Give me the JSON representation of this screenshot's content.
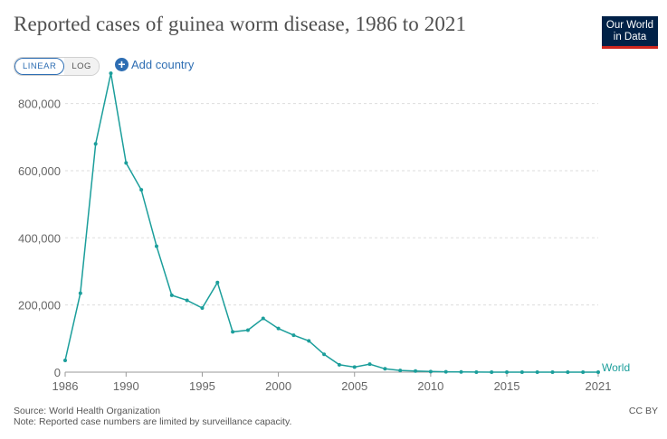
{
  "header": {
    "title": "Reported cases of guinea worm disease, 1986 to 2021",
    "logo_line1": "Our World",
    "logo_line2": "in Data"
  },
  "controls": {
    "linear_label": "LINEAR",
    "log_label": "LOG",
    "add_country_label": "Add country"
  },
  "chart_data": {
    "type": "line",
    "title": "Reported cases of guinea worm disease, 1986 to 2021",
    "xlabel": "",
    "ylabel": "",
    "xlim": [
      1986,
      2021
    ],
    "ylim": [
      0,
      850000
    ],
    "xticks": [
      1986,
      1990,
      1995,
      2000,
      2005,
      2010,
      2015,
      2021
    ],
    "yticks": [
      0,
      200000,
      400000,
      600000,
      800000
    ],
    "ytick_labels": [
      "0",
      "200,000",
      "400,000",
      "600,000",
      "800,000"
    ],
    "grid": true,
    "series": [
      {
        "name": "World",
        "color": "#1b9e9b",
        "x": [
          1986,
          1987,
          1988,
          1989,
          1990,
          1991,
          1992,
          1993,
          1994,
          1995,
          1996,
          1997,
          1998,
          1999,
          2000,
          2001,
          2002,
          2003,
          2004,
          2005,
          2006,
          2007,
          2008,
          2009,
          2010,
          2011,
          2012,
          2013,
          2014,
          2015,
          2016,
          2017,
          2018,
          2019,
          2020,
          2021
        ],
        "values": [
          35000,
          235000,
          680000,
          890000,
          623000,
          543000,
          375000,
          229000,
          214000,
          191000,
          267000,
          120000,
          125000,
          160000,
          130000,
          110000,
          93000,
          53000,
          22000,
          15000,
          24000,
          10000,
          5000,
          3200,
          1800,
          1100,
          542,
          148,
          126,
          22,
          25,
          30,
          28,
          54,
          27,
          15
        ]
      }
    ]
  },
  "footer": {
    "source": "Source: World Health Organization",
    "note": "Note: Reported case numbers are limited by surveillance capacity.",
    "license": "CC BY"
  }
}
